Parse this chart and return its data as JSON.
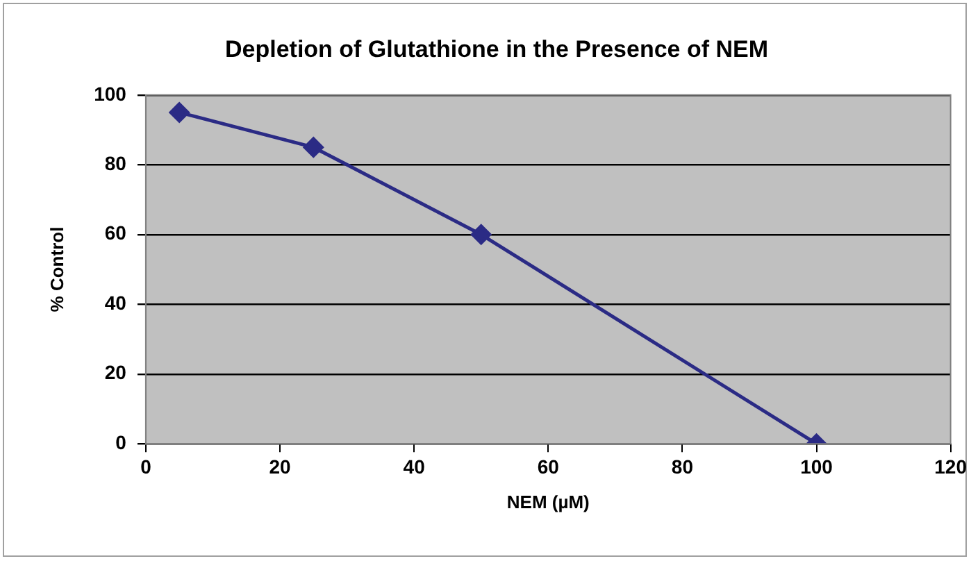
{
  "chart_data": {
    "type": "line",
    "title": "Depletion of Glutathione in the Presence of NEM",
    "xlabel": "NEM (µM)",
    "ylabel": "% Control",
    "x": [
      5,
      25,
      50,
      100
    ],
    "series": [
      {
        "color": "#2b2b85",
        "values": [
          95,
          85,
          60,
          0
        ]
      }
    ],
    "xlim": [
      0,
      120
    ],
    "xticks": [
      0,
      20,
      40,
      60,
      80,
      100,
      120
    ],
    "ylim": [
      0,
      100
    ],
    "yticks": [
      0,
      20,
      40,
      60,
      80,
      100
    ],
    "grid": "y",
    "legend": false,
    "marker": "diamond",
    "line_style": "solid"
  }
}
